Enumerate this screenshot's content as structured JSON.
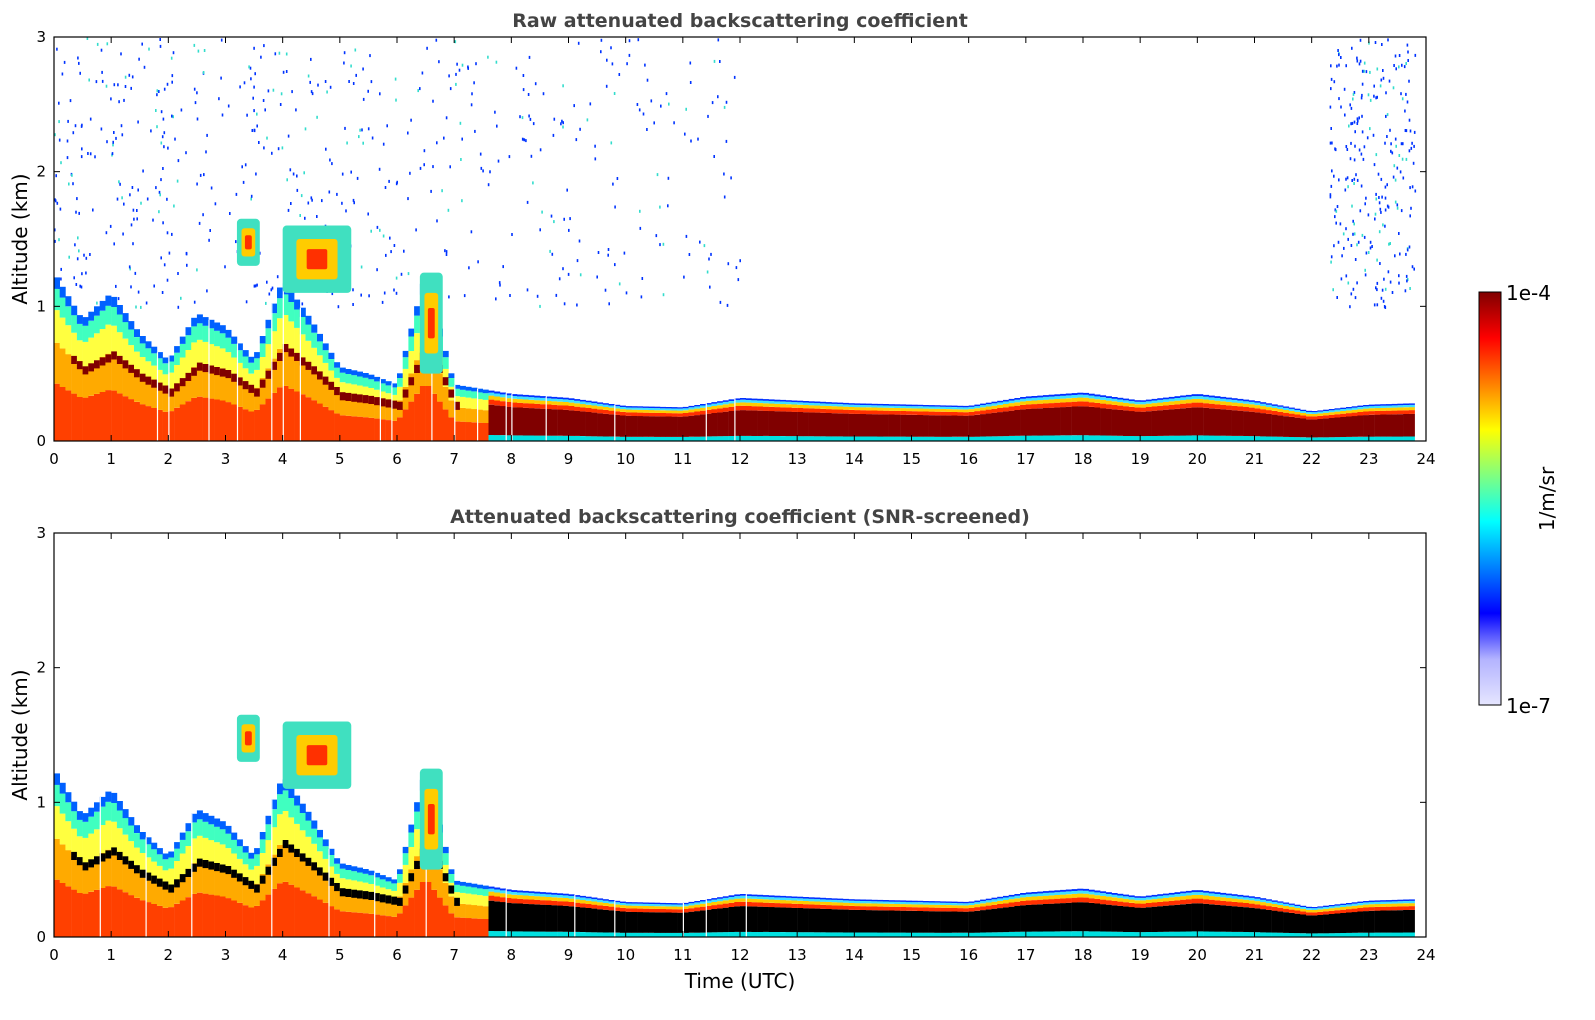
{
  "chart_data": [
    {
      "type": "heatmap",
      "title": "Raw attenuated backscattering coefficient",
      "xlabel": "",
      "ylabel": "Altitude (km)",
      "xlim": [
        0,
        24
      ],
      "ylim": [
        0,
        3
      ],
      "xticks": [
        "0",
        "1",
        "2",
        "3",
        "4",
        "5",
        "6",
        "7",
        "8",
        "9",
        "10",
        "11",
        "12",
        "13",
        "14",
        "15",
        "16",
        "17",
        "18",
        "19",
        "20",
        "21",
        "22",
        "23",
        "24"
      ],
      "yticks": [
        "0",
        "1",
        "2",
        "3"
      ],
      "screened": false,
      "boundary_layer_top_km": [
        [
          0,
          1.25
        ],
        [
          0.5,
          0.9
        ],
        [
          1,
          1.1
        ],
        [
          1.5,
          0.8
        ],
        [
          2,
          0.6
        ],
        [
          2.5,
          0.95
        ],
        [
          3,
          0.85
        ],
        [
          3.5,
          0.6
        ],
        [
          4,
          1.2
        ],
        [
          4.5,
          0.9
        ],
        [
          5,
          0.55
        ],
        [
          5.5,
          0.5
        ],
        [
          6,
          0.42
        ],
        [
          6.5,
          1.25
        ],
        [
          7,
          0.42
        ],
        [
          8,
          0.35
        ],
        [
          9,
          0.32
        ],
        [
          10,
          0.26
        ],
        [
          11,
          0.25
        ],
        [
          12,
          0.32
        ],
        [
          13,
          0.3
        ],
        [
          14,
          0.28
        ],
        [
          15,
          0.27
        ],
        [
          16,
          0.26
        ],
        [
          17,
          0.33
        ],
        [
          18,
          0.36
        ],
        [
          19,
          0.3
        ],
        [
          20,
          0.35
        ],
        [
          21,
          0.3
        ],
        [
          22,
          0.22
        ],
        [
          23,
          0.27
        ],
        [
          23.8,
          0.28
        ]
      ],
      "elevated_layers_km": [
        {
          "t_start": 3.2,
          "t_end": 3.6,
          "bottom": 1.3,
          "top": 1.65
        },
        {
          "t_start": 4.0,
          "t_end": 5.2,
          "bottom": 1.1,
          "top": 1.6
        },
        {
          "t_start": 6.4,
          "t_end": 6.8,
          "bottom": 0.5,
          "top": 1.25
        }
      ],
      "noise_regions": [
        {
          "t_start": 0,
          "t_end": 12,
          "bottom": 1.0,
          "top": 3.0
        },
        {
          "t_start": 22.3,
          "t_end": 23.8,
          "bottom": 1.0,
          "top": 3.0
        }
      ]
    },
    {
      "type": "heatmap",
      "title": "Attenuated backscattering coefficient (SNR-screened)",
      "xlabel": "Time (UTC)",
      "ylabel": "Altitude (km)",
      "xlim": [
        0,
        24
      ],
      "ylim": [
        0,
        3
      ],
      "xticks": [
        "0",
        "1",
        "2",
        "3",
        "4",
        "5",
        "6",
        "7",
        "8",
        "9",
        "10",
        "11",
        "12",
        "13",
        "14",
        "15",
        "16",
        "17",
        "18",
        "19",
        "20",
        "21",
        "22",
        "23",
        "24"
      ],
      "yticks": [
        "0",
        "1",
        "2",
        "3"
      ],
      "screened": true,
      "saturated_color": "#000000"
    }
  ],
  "colorbar": {
    "max_label": "1e-4",
    "min_label": "1e-7",
    "label": "1/m/sr",
    "colors": [
      "#e6e6ff",
      "#b3b3ff",
      "#0000ff",
      "#0080ff",
      "#00ffff",
      "#80ff80",
      "#ffff00",
      "#ff8000",
      "#ff0000",
      "#800000"
    ]
  }
}
